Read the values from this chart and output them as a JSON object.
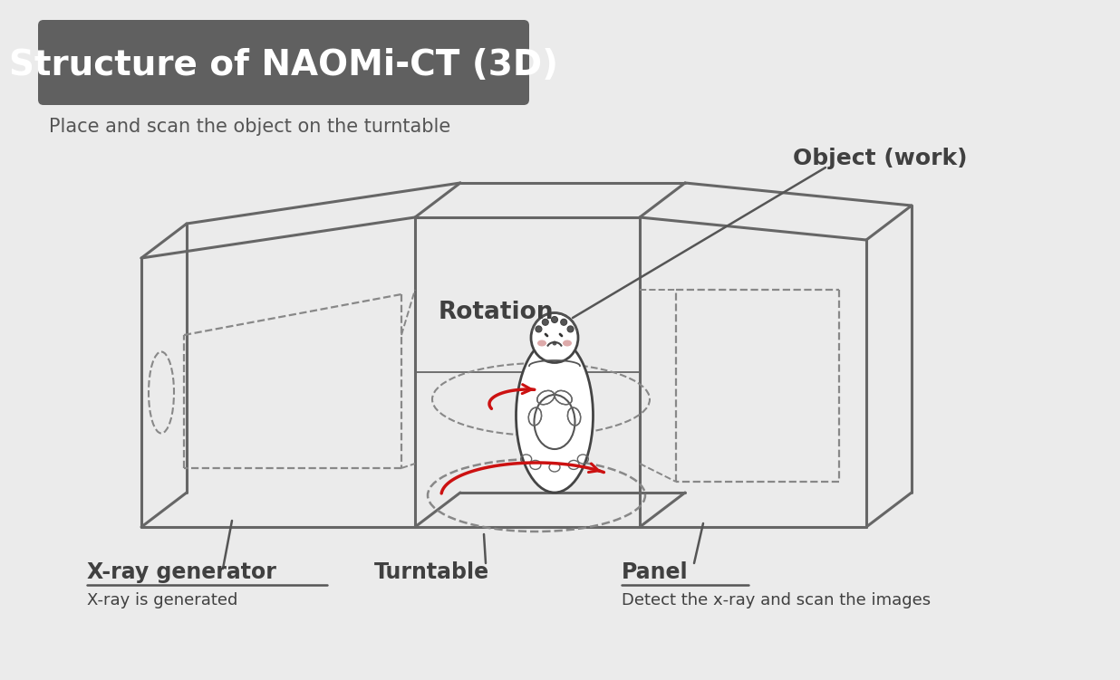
{
  "bg_color": "#ebebeb",
  "title_box_color": "#606060",
  "title_text": "Structure of NAOMi-CT (3D)",
  "title_text_color": "#ffffff",
  "subtitle_text": "Place and scan the object on the turntable",
  "subtitle_color": "#555555",
  "label_rotation": "Rotation",
  "label_object": "Object (work)",
  "label_xray": "X-ray generator",
  "label_xray_sub": "X-ray is generated",
  "label_turntable": "Turntable",
  "label_panel": "Panel",
  "label_panel_sub": "Detect the x-ray and scan the images",
  "line_color": "#666666",
  "dashed_color": "#888888",
  "red_color": "#cc1111",
  "text_dark": "#404040",
  "annotation_color": "#444444"
}
